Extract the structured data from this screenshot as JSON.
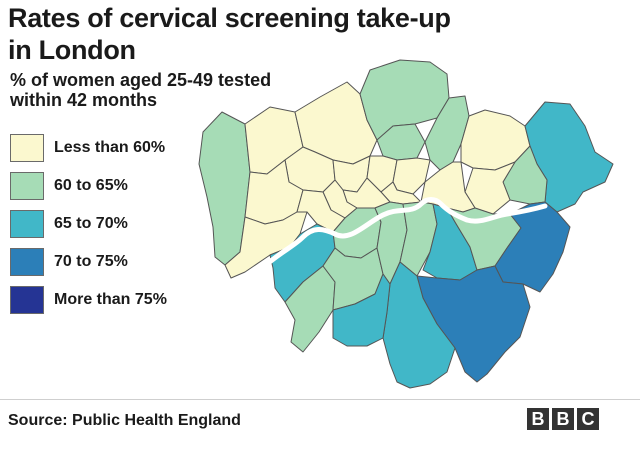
{
  "title": "Rates of cervical screening take-up in London",
  "subtitle": "% of women aged 25-49 tested within 42 months",
  "legend": [
    {
      "label": "Less than 60%",
      "color": "#fbf8cf"
    },
    {
      "label": "60 to 65%",
      "color": "#a6dcb6"
    },
    {
      "label": "65 to 70%",
      "color": "#41b7c8"
    },
    {
      "label": "70 to 75%",
      "color": "#2c7fb8"
    },
    {
      "label": "More than 75%",
      "color": "#253494"
    }
  ],
  "colors": {
    "river": "#ffffff",
    "outline": "#555555",
    "logo_box": "#333333"
  },
  "source": "Source: Public Health England",
  "logo": [
    "B",
    "B",
    "C"
  ]
}
